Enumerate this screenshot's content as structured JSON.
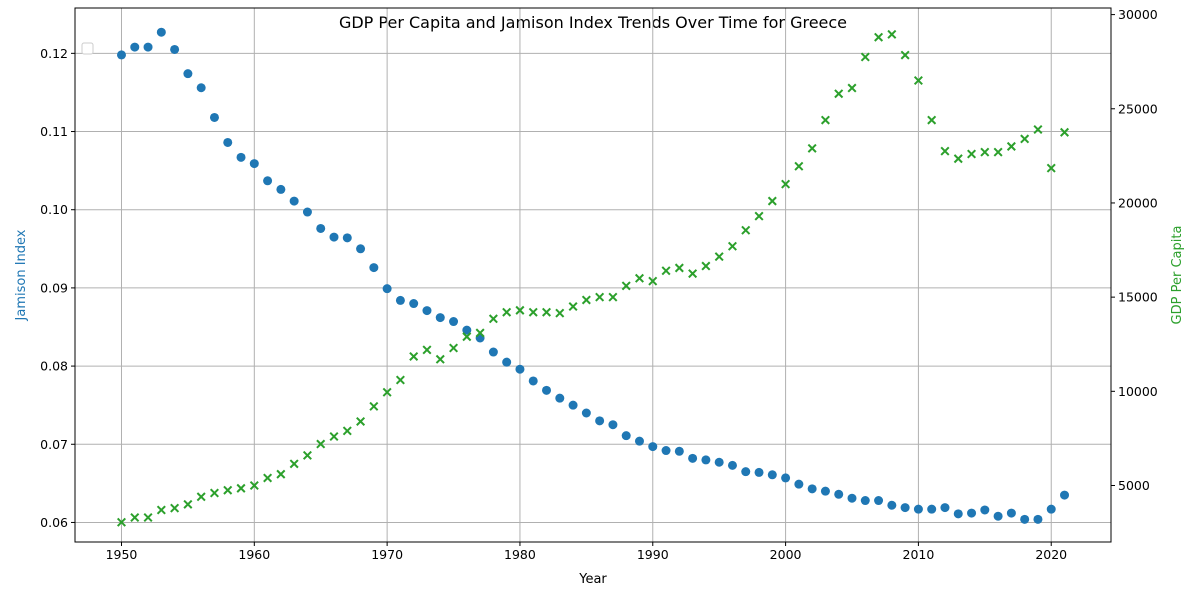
{
  "chart_data": {
    "type": "scatter",
    "title": "GDP Per Capita and Jamison Index Trends Over Time for Greece",
    "xlabel": "Year",
    "ylabel_left": "Jamison Index",
    "ylabel_right": "GDP Per Capita",
    "xlim": [
      1946.5,
      2024.5
    ],
    "ylim_left": [
      0.0575,
      0.1258
    ],
    "ylim_right": [
      2000,
      30350
    ],
    "x_ticks": [
      1950,
      1960,
      1970,
      1980,
      1990,
      2000,
      2010,
      2020
    ],
    "y_left_ticks": [
      0.06,
      0.07,
      0.08,
      0.09,
      0.1,
      0.11,
      0.12
    ],
    "y_right_ticks": [
      5000,
      10000,
      15000,
      20000,
      25000,
      30000
    ],
    "grid": true,
    "legend": "top-left (empty)",
    "colors": {
      "jamison": "#1f77b4",
      "gdp": "#2ca02c"
    },
    "series": [
      {
        "axis": "left",
        "marker": "circle",
        "x": [
          1950,
          1951,
          1952,
          1953,
          1954,
          1955,
          1956,
          1957,
          1958,
          1959,
          1960,
          1961,
          1962,
          1963,
          1964,
          1965,
          1966,
          1967,
          1968,
          1969,
          1970,
          1971,
          1972,
          1973,
          1974,
          1975,
          1976,
          1977,
          1978,
          1979,
          1980,
          1981,
          1982,
          1983,
          1984,
          1985,
          1986,
          1987,
          1988,
          1989,
          1990,
          1991,
          1992,
          1993,
          1994,
          1995,
          1996,
          1997,
          1998,
          1999,
          2000,
          2001,
          2002,
          2003,
          2004,
          2005,
          2006,
          2007,
          2008,
          2009,
          2010,
          2011,
          2012,
          2013,
          2014,
          2015,
          2016,
          2017,
          2018,
          2019,
          2020,
          2021
        ],
        "values": [
          0.1198,
          0.1208,
          0.1208,
          0.1227,
          0.1205,
          0.1174,
          0.1156,
          0.1118,
          0.1086,
          0.1067,
          0.1059,
          0.1037,
          0.1026,
          0.1011,
          0.0997,
          0.0976,
          0.0965,
          0.0964,
          0.095,
          0.0926,
          0.0899,
          0.0884,
          0.088,
          0.0871,
          0.0862,
          0.0857,
          0.0846,
          0.0836,
          0.0818,
          0.0805,
          0.0796,
          0.0781,
          0.0769,
          0.0759,
          0.075,
          0.074,
          0.073,
          0.0725,
          0.0711,
          0.0704,
          0.0697,
          0.0692,
          0.0691,
          0.0682,
          0.068,
          0.0677,
          0.0673,
          0.0665,
          0.0664,
          0.0661,
          0.0657,
          0.0649,
          0.0643,
          0.064,
          0.0636,
          0.0631,
          0.0628,
          0.0628,
          0.0622,
          0.0619,
          0.0617,
          0.0617,
          0.0619,
          0.0611,
          0.0612,
          0.0616,
          0.0608,
          0.0612,
          0.0604,
          0.0604,
          0.0617,
          0.0635
        ]
      },
      {
        "axis": "right",
        "marker": "x",
        "x": [
          1950,
          1951,
          1952,
          1953,
          1954,
          1955,
          1956,
          1957,
          1958,
          1959,
          1960,
          1961,
          1962,
          1963,
          1964,
          1965,
          1966,
          1967,
          1968,
          1969,
          1970,
          1971,
          1972,
          1973,
          1974,
          1975,
          1976,
          1977,
          1978,
          1979,
          1980,
          1981,
          1982,
          1983,
          1984,
          1985,
          1986,
          1987,
          1988,
          1989,
          1990,
          1991,
          1992,
          1993,
          1994,
          1995,
          1996,
          1997,
          1998,
          1999,
          2000,
          2001,
          2002,
          2003,
          2004,
          2005,
          2006,
          2007,
          2008,
          2009,
          2010,
          2011,
          2012,
          2013,
          2014,
          2015,
          2016,
          2017,
          2018,
          2019,
          2020,
          2021
        ],
        "values": [
          3050,
          3300,
          3300,
          3700,
          3800,
          4000,
          4400,
          4600,
          4750,
          4850,
          5000,
          5400,
          5600,
          6150,
          6600,
          7200,
          7600,
          7900,
          8400,
          9200,
          9950,
          10600,
          11850,
          12200,
          11700,
          12300,
          12900,
          13100,
          13850,
          14200,
          14300,
          14200,
          14200,
          14150,
          14500,
          14850,
          15000,
          15000,
          15600,
          16000,
          15850,
          16400,
          16550,
          16250,
          16650,
          17150,
          17700,
          18550,
          19300,
          20100,
          21000,
          21950,
          22900,
          24400,
          25800,
          26100,
          27750,
          28800,
          28950,
          27850,
          26500,
          24400,
          22750,
          22350,
          22600,
          22700,
          22700,
          23000,
          23400,
          23900,
          21850,
          23750
        ]
      }
    ]
  }
}
